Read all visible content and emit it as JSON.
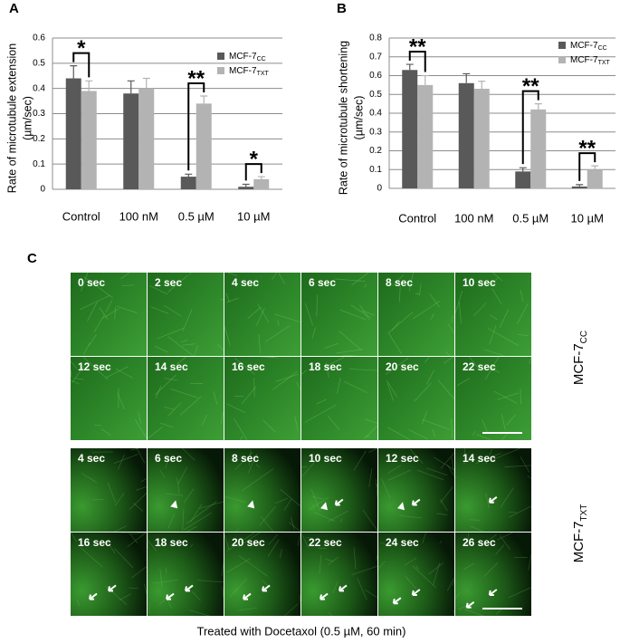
{
  "chart_data": [
    {
      "type": "bar",
      "panel": "A",
      "y_label": "Rate of microtubule extension",
      "y_label_unit": "(µm/sec)",
      "categories": [
        "Control",
        "100 nM",
        "0.5 µM",
        "10 µM"
      ],
      "series": [
        {
          "name": "MCF-7",
          "subscript": "CC",
          "color": "#595959",
          "values": [
            0.44,
            0.38,
            0.05,
            0.01
          ],
          "errors": [
            0.05,
            0.05,
            0.01,
            0.01
          ]
        },
        {
          "name": "MCF-7",
          "subscript": "TXT",
          "color": "#b3b3b3",
          "values": [
            0.39,
            0.4,
            0.34,
            0.04
          ],
          "errors": [
            0.04,
            0.04,
            0.03,
            0.01
          ]
        }
      ],
      "ylim": [
        0,
        0.6
      ],
      "yticks": [
        0,
        0.1,
        0.2,
        0.3,
        0.4,
        0.5,
        0.6
      ],
      "grid": true,
      "legend": "upper right",
      "annotations": [
        {
          "category": "Control",
          "text": "*"
        },
        {
          "category": "0.5 µM",
          "text": "**"
        },
        {
          "category": "10 µM",
          "text": "*"
        }
      ]
    },
    {
      "type": "bar",
      "panel": "B",
      "y_label": "Rate of microtubule shortening",
      "y_label_unit": "(µm/sec)",
      "categories": [
        "Control",
        "100 nM",
        "0.5 µM",
        "10 µM"
      ],
      "series": [
        {
          "name": "MCF-7",
          "subscript": "CC",
          "color": "#595959",
          "values": [
            0.63,
            0.56,
            0.09,
            0.01
          ],
          "errors": [
            0.03,
            0.05,
            0.02,
            0.01
          ]
        },
        {
          "name": "MCF-7",
          "subscript": "TXT",
          "color": "#b3b3b3",
          "values": [
            0.55,
            0.53,
            0.42,
            0.1
          ],
          "errors": [
            0.05,
            0.04,
            0.03,
            0.02
          ]
        }
      ],
      "ylim": [
        0,
        0.8
      ],
      "yticks": [
        0,
        0.1,
        0.2,
        0.3,
        0.4,
        0.5,
        0.6,
        0.7,
        0.8
      ],
      "grid": true,
      "legend": "upper right",
      "annotations": [
        {
          "category": "Control",
          "text": "**"
        },
        {
          "category": "0.5 µM",
          "text": "**"
        },
        {
          "category": "10 µM",
          "text": "**"
        }
      ]
    }
  ],
  "panel_c": {
    "panel": "C",
    "groups": [
      {
        "name": "MCF-7",
        "subscript": "CC",
        "frames": [
          "0 sec",
          "2 sec",
          "4 sec",
          "6 sec",
          "8 sec",
          "10 sec",
          "12 sec",
          "14 sec",
          "16 sec",
          "18 sec",
          "20 sec",
          "22 sec"
        ]
      },
      {
        "name": "MCF-7",
        "subscript": "TXT",
        "frames": [
          "4 sec",
          "6 sec",
          "8 sec",
          "10 sec",
          "12 sec",
          "14 sec",
          "16 sec",
          "18 sec",
          "20 sec",
          "22 sec",
          "24 sec",
          "26 sec"
        ]
      }
    ],
    "caption": "Treated with Docetaxol (0.5 µM, 60 min)"
  }
}
